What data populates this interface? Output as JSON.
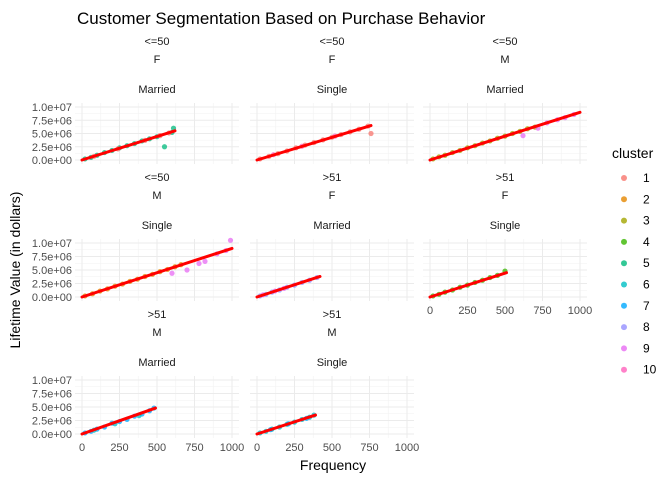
{
  "chart_data": {
    "type": "scatter",
    "title": "Customer Segmentation Based on Purchase Behavior",
    "xlabel": "Frequency",
    "ylabel": "Lifetime Value (in dollars)",
    "xlim": [
      0,
      1000
    ],
    "ylim": [
      0,
      10000000
    ],
    "x_ticks": [
      0,
      250,
      500,
      750,
      1000
    ],
    "x_tick_labels": [
      "0",
      "250",
      "500",
      "750",
      "1000"
    ],
    "y_ticks": [
      0,
      2500000,
      5000000,
      7500000,
      10000000
    ],
    "y_tick_labels": [
      "0.0e+00",
      "2.5e+06",
      "5.0e+06",
      "7.5e+06",
      "1.0e+07"
    ],
    "grid": true,
    "legend": {
      "title": "cluster",
      "position": "right",
      "items": [
        {
          "label": "1",
          "color": "#F8766D"
        },
        {
          "label": "2",
          "color": "#E58700"
        },
        {
          "label": "3",
          "color": "#A3A500"
        },
        {
          "label": "4",
          "color": "#39B600"
        },
        {
          "label": "5",
          "color": "#00BA7C"
        },
        {
          "label": "6",
          "color": "#00BFC4"
        },
        {
          "label": "7",
          "color": "#00A9FF"
        },
        {
          "label": "8",
          "color": "#9590FF"
        },
        {
          "label": "9",
          "color": "#E76BF3"
        },
        {
          "label": "10",
          "color": "#FF62BC"
        }
      ]
    },
    "trend_color": "#FF0000",
    "panels": [
      {
        "strips": [
          "<=50",
          "F",
          "Married"
        ],
        "x_range": [
          0,
          620
        ],
        "trend": [
          [
            0,
            0
          ],
          [
            620,
            5500000
          ]
        ],
        "series": [
          {
            "cluster": "5",
            "points": [
              [
                20,
                200000
              ],
              [
                60,
                500000
              ],
              [
                100,
                900000
              ],
              [
                150,
                1400000
              ],
              [
                200,
                1800000
              ],
              [
                250,
                2300000
              ],
              [
                300,
                2700000
              ],
              [
                350,
                3100000
              ],
              [
                400,
                3600000
              ],
              [
                450,
                4000000
              ],
              [
                500,
                4400000
              ],
              [
                550,
                2500000
              ],
              [
                600,
                5200000
              ],
              [
                610,
                6000000
              ]
            ]
          },
          {
            "cluster": "1",
            "points": [
              [
                80,
                700000
              ],
              [
                240,
                2100000
              ],
              [
                420,
                3700000
              ],
              [
                520,
                4600000
              ],
              [
                580,
                5100000
              ]
            ]
          }
        ]
      },
      {
        "strips": [
          "<=50",
          "F",
          "Single"
        ],
        "x_range": [
          0,
          760
        ],
        "trend": [
          [
            0,
            0
          ],
          [
            760,
            6500000
          ]
        ],
        "series": [
          {
            "cluster": "1",
            "points": [
              [
                20,
                200000
              ],
              [
                80,
                700000
              ],
              [
                140,
                1200000
              ],
              [
                200,
                1700000
              ],
              [
                260,
                2300000
              ],
              [
                320,
                2800000
              ],
              [
                380,
                3300000
              ],
              [
                440,
                3800000
              ],
              [
                500,
                4300000
              ],
              [
                560,
                4800000
              ],
              [
                620,
                5300000
              ],
              [
                680,
                5800000
              ],
              [
                740,
                6400000
              ],
              [
                760,
                5000000
              ]
            ]
          },
          {
            "cluster": "10",
            "points": [
              [
                110,
                1000000
              ],
              [
                300,
                2600000
              ],
              [
                520,
                4500000
              ]
            ]
          }
        ]
      },
      {
        "strips": [
          "<=50",
          "M",
          "Married"
        ],
        "x_range": [
          0,
          1000
        ],
        "trend": [
          [
            0,
            0
          ],
          [
            1000,
            9000000
          ]
        ],
        "series": [
          {
            "cluster": "3",
            "points": [
              [
                20,
                200000
              ],
              [
                60,
                600000
              ],
              [
                100,
                900000
              ],
              [
                150,
                1400000
              ],
              [
                200,
                1800000
              ],
              [
                250,
                2300000
              ],
              [
                300,
                2700000
              ],
              [
                350,
                3200000
              ],
              [
                400,
                3600000
              ],
              [
                450,
                4100000
              ],
              [
                500,
                4500000
              ],
              [
                550,
                5000000
              ],
              [
                600,
                5400000
              ],
              [
                650,
                5900000
              ],
              [
                700,
                6200000
              ]
            ]
          },
          {
            "cluster": "9",
            "points": [
              [
                620,
                4600000
              ],
              [
                720,
                6000000
              ],
              [
                780,
                7000000
              ],
              [
                850,
                7600000
              ],
              [
                900,
                8000000
              ],
              [
                960,
                8600000
              ]
            ]
          }
        ]
      },
      {
        "strips": [
          "<=50",
          "M",
          "Single"
        ],
        "x_range": [
          0,
          1000
        ],
        "trend": [
          [
            0,
            0
          ],
          [
            1000,
            9000000
          ]
        ],
        "series": [
          {
            "cluster": "2",
            "points": [
              [
                20,
                200000
              ],
              [
                70,
                600000
              ],
              [
                120,
                1100000
              ],
              [
                170,
                1500000
              ],
              [
                220,
                2000000
              ],
              [
                270,
                2400000
              ],
              [
                320,
                2900000
              ],
              [
                370,
                3300000
              ],
              [
                420,
                3800000
              ],
              [
                470,
                4200000
              ],
              [
                520,
                4700000
              ],
              [
                570,
                5100000
              ],
              [
                620,
                5600000
              ],
              [
                660,
                6000000
              ]
            ]
          },
          {
            "cluster": "9",
            "points": [
              [
                600,
                4400000
              ],
              [
                700,
                5000000
              ],
              [
                780,
                6200000
              ],
              [
                820,
                6600000
              ],
              [
                900,
                8000000
              ],
              [
                960,
                8600000
              ],
              [
                990,
                10500000
              ]
            ]
          }
        ]
      },
      {
        "strips": [
          ">51",
          "F",
          "Married"
        ],
        "x_range": [
          0,
          420
        ],
        "trend": [
          [
            0,
            0
          ],
          [
            420,
            3800000
          ]
        ],
        "series": [
          {
            "cluster": "8",
            "points": [
              [
                20,
                200000
              ],
              [
                60,
                500000
              ],
              [
                100,
                900000
              ],
              [
                150,
                1300000
              ],
              [
                200,
                1800000
              ],
              [
                250,
                2200000
              ],
              [
                300,
                2700000
              ],
              [
                350,
                3100000
              ],
              [
                400,
                3600000
              ]
            ]
          },
          {
            "cluster": "9",
            "points": [
              [
                40,
                400000
              ],
              [
                120,
                1100000
              ],
              [
                180,
                1600000
              ]
            ]
          }
        ]
      },
      {
        "strips": [
          ">51",
          "F",
          "Single"
        ],
        "x_range": [
          0,
          510
        ],
        "trend": [
          [
            0,
            0
          ],
          [
            510,
            4500000
          ]
        ],
        "series": [
          {
            "cluster": "4",
            "points": [
              [
                20,
                200000
              ],
              [
                60,
                500000
              ],
              [
                100,
                900000
              ],
              [
                150,
                1300000
              ],
              [
                200,
                1800000
              ],
              [
                250,
                2200000
              ],
              [
                300,
                2700000
              ],
              [
                350,
                3100000
              ],
              [
                400,
                3600000
              ],
              [
                450,
                4000000
              ],
              [
                500,
                4800000
              ]
            ]
          }
        ]
      },
      {
        "strips": [
          ">51",
          "M",
          "Married"
        ],
        "x_range": [
          0,
          490
        ],
        "trend": [
          [
            0,
            0
          ],
          [
            490,
            4800000
          ]
        ],
        "series": [
          {
            "cluster": "7",
            "points": [
              [
                20,
                200000
              ],
              [
                60,
                500000
              ],
              [
                100,
                900000
              ],
              [
                150,
                1300000
              ],
              [
                200,
                2000000
              ],
              [
                250,
                2300000
              ],
              [
                300,
                2700000
              ],
              [
                350,
                3300000
              ],
              [
                400,
                3700000
              ],
              [
                450,
                4300000
              ],
              [
                480,
                4800000
              ]
            ]
          },
          {
            "cluster": "6",
            "points": [
              [
                80,
                700000
              ],
              [
                220,
                1900000
              ],
              [
                380,
                3400000
              ]
            ]
          }
        ]
      },
      {
        "strips": [
          ">51",
          "M",
          "Single"
        ],
        "x_range": [
          0,
          390
        ],
        "trend": [
          [
            0,
            0
          ],
          [
            390,
            3500000
          ]
        ],
        "series": [
          {
            "cluster": "6",
            "points": [
              [
                20,
                200000
              ],
              [
                60,
                500000
              ],
              [
                100,
                900000
              ],
              [
                150,
                1300000
              ],
              [
                200,
                1800000
              ],
              [
                250,
                2200000
              ],
              [
                300,
                2700000
              ],
              [
                350,
                3100000
              ],
              [
                380,
                3500000
              ]
            ]
          },
          {
            "cluster": "7",
            "points": [
              [
                90,
                800000
              ],
              [
                210,
                1900000
              ],
              [
                330,
                2900000
              ]
            ]
          }
        ]
      }
    ]
  }
}
